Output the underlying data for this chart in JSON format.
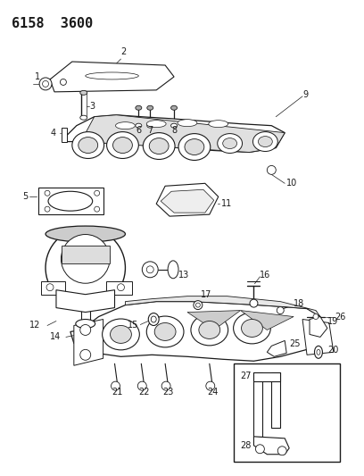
{
  "title": "6158  3600",
  "bg_color": "#ffffff",
  "fig_width": 4.08,
  "fig_height": 5.33,
  "dpi": 100,
  "line_color": "#1a1a1a",
  "label_fontsize": 7,
  "title_fontsize": 11
}
